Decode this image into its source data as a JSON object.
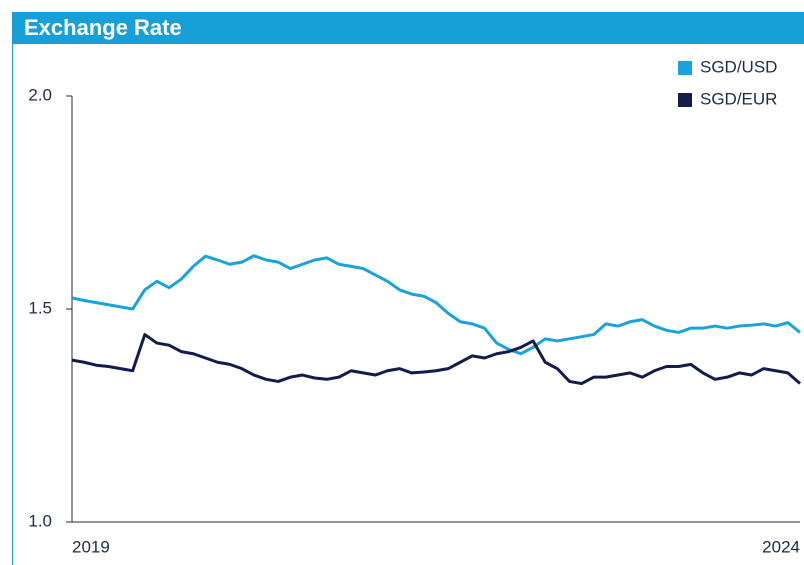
{
  "chart_data": {
    "type": "line",
    "title": "Exchange Rate",
    "categories": [
      "2019",
      null,
      null,
      null,
      null,
      null,
      null,
      null,
      null,
      null,
      null,
      null,
      null,
      null,
      null,
      null,
      null,
      null,
      null,
      null,
      null,
      null,
      null,
      null,
      null,
      null,
      null,
      null,
      null,
      null,
      null,
      null,
      null,
      null,
      null,
      null,
      null,
      null,
      null,
      null,
      null,
      null,
      null,
      null,
      null,
      null,
      null,
      null,
      null,
      null,
      null,
      null,
      null,
      null,
      null,
      null,
      null,
      null,
      null,
      null,
      "2024"
    ],
    "series": [
      {
        "name": "SGD/USD",
        "color": "#19a3dc",
        "values": [
          1.526,
          1.52,
          1.515,
          1.51,
          1.505,
          1.5,
          1.545,
          1.565,
          1.55,
          1.57,
          1.6,
          1.624,
          1.615,
          1.605,
          1.61,
          1.625,
          1.615,
          1.61,
          1.595,
          1.605,
          1.615,
          1.62,
          1.605,
          1.6,
          1.595,
          1.58,
          1.565,
          1.545,
          1.535,
          1.53,
          1.515,
          1.49,
          1.47,
          1.465,
          1.455,
          1.42,
          1.405,
          1.395,
          1.41,
          1.43,
          1.425,
          1.43,
          1.435,
          1.44,
          1.465,
          1.46,
          1.47,
          1.475,
          1.46,
          1.45,
          1.445,
          1.455,
          1.455,
          1.46,
          1.455,
          1.46,
          1.462,
          1.465,
          1.46,
          1.468,
          1.445
        ]
      },
      {
        "name": "SGD/EUR",
        "color": "#141b4d",
        "values": [
          1.38,
          1.375,
          1.368,
          1.365,
          1.36,
          1.355,
          1.44,
          1.42,
          1.415,
          1.4,
          1.395,
          1.385,
          1.375,
          1.37,
          1.36,
          1.345,
          1.335,
          1.33,
          1.34,
          1.345,
          1.338,
          1.335,
          1.34,
          1.355,
          1.35,
          1.345,
          1.355,
          1.36,
          1.35,
          1.352,
          1.355,
          1.36,
          1.375,
          1.39,
          1.385,
          1.395,
          1.4,
          1.41,
          1.425,
          1.375,
          1.36,
          1.33,
          1.325,
          1.34,
          1.34,
          1.345,
          1.35,
          1.34,
          1.355,
          1.365,
          1.365,
          1.37,
          1.35,
          1.335,
          1.34,
          1.35,
          1.345,
          1.36,
          1.355,
          1.35,
          1.325
        ]
      }
    ],
    "ylim": [
      1,
      2
    ],
    "yticks": [
      {
        "value": 1,
        "label": "1.0"
      },
      1.5,
      {
        "value": 2,
        "label": "2.0"
      }
    ],
    "legend": "upper right"
  }
}
